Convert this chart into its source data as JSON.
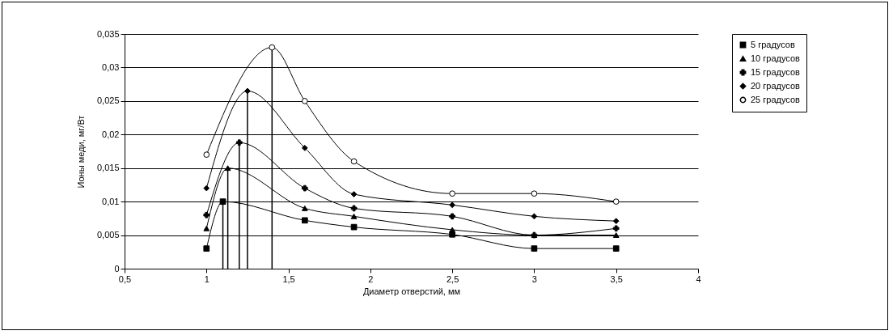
{
  "chart_data": {
    "type": "line",
    "xlabel": "Диаметр отверстий, мм",
    "ylabel": "Ионы меди, мг/Вт",
    "xlim": [
      0.5,
      4
    ],
    "xticks": [
      {
        "value": 0.5,
        "label": "0,5"
      },
      1,
      {
        "value": 1.5,
        "label": "1,5"
      },
      2,
      {
        "value": 2.5,
        "label": "2,5"
      },
      3,
      {
        "value": 3.5,
        "label": "3,5"
      },
      4
    ],
    "ylim": [
      0,
      0.035
    ],
    "yticks": [
      0,
      {
        "value": 0.005,
        "label": "0,005"
      },
      {
        "value": 0.01,
        "label": "0,01"
      },
      {
        "value": 0.015,
        "label": "0,015"
      },
      {
        "value": 0.02,
        "label": "0,02"
      },
      {
        "value": 0.025,
        "label": "0,025"
      },
      {
        "value": 0.03,
        "label": "0,03"
      },
      {
        "value": 0.035,
        "label": "0,035"
      }
    ],
    "grid": "y",
    "legend": "right",
    "series": [
      {
        "name": "5 градусов",
        "color": "#000000",
        "marker": "square",
        "x": [
          1,
          1.1,
          1.6,
          1.9,
          2.5,
          3,
          3.5
        ],
        "values": [
          0.003,
          0.01,
          0.0072,
          0.0062,
          0.0051,
          0.003,
          0.003
        ]
      },
      {
        "name": "10 градусов",
        "color": "#000000",
        "marker": "triangle",
        "x": [
          1,
          1.13,
          1.6,
          1.9,
          2.5,
          3,
          3.5
        ],
        "values": [
          0.006,
          0.015,
          0.009,
          0.0078,
          0.0058,
          0.005,
          0.005
        ]
      },
      {
        "name": "15 градусов",
        "color": "#000000",
        "marker": "cross",
        "x": [
          1,
          1.2,
          1.6,
          1.9,
          2.5,
          3,
          3.5
        ],
        "values": [
          0.008,
          0.0188,
          0.012,
          0.009,
          0.0078,
          0.005,
          0.006
        ]
      },
      {
        "name": "20 градусов",
        "color": "#000000",
        "marker": "diamond",
        "x": [
          1,
          1.25,
          1.6,
          1.9,
          2.5,
          3,
          3.5
        ],
        "values": [
          0.012,
          0.0265,
          0.018,
          0.0111,
          0.0095,
          0.0078,
          0.0071
        ]
      },
      {
        "name": "25 градусов",
        "color": "#000000",
        "marker": "circle",
        "x": [
          1,
          1.4,
          1.6,
          1.9,
          2.5,
          3,
          3.5
        ],
        "values": [
          0.017,
          0.033,
          0.025,
          0.016,
          0.0112,
          0.0112,
          0.01
        ]
      },
      {
        "color": "#000000",
        "marker": "none",
        "x": [
          1.1,
          1.1
        ],
        "values": [
          0,
          0.01
        ]
      },
      {
        "color": "#000000",
        "marker": "none",
        "x": [
          1.13,
          1.13
        ],
        "values": [
          0,
          0.015
        ]
      },
      {
        "color": "#000000",
        "marker": "none",
        "x": [
          1.2,
          1.2
        ],
        "values": [
          0,
          0.0188
        ]
      },
      {
        "color": "#000000",
        "marker": "none",
        "x": [
          1.25,
          1.25
        ],
        "values": [
          0,
          0.0265
        ]
      },
      {
        "color": "#000000",
        "marker": "none",
        "x": [
          1.4,
          1.4
        ],
        "values": [
          0,
          0.033
        ]
      }
    ]
  }
}
